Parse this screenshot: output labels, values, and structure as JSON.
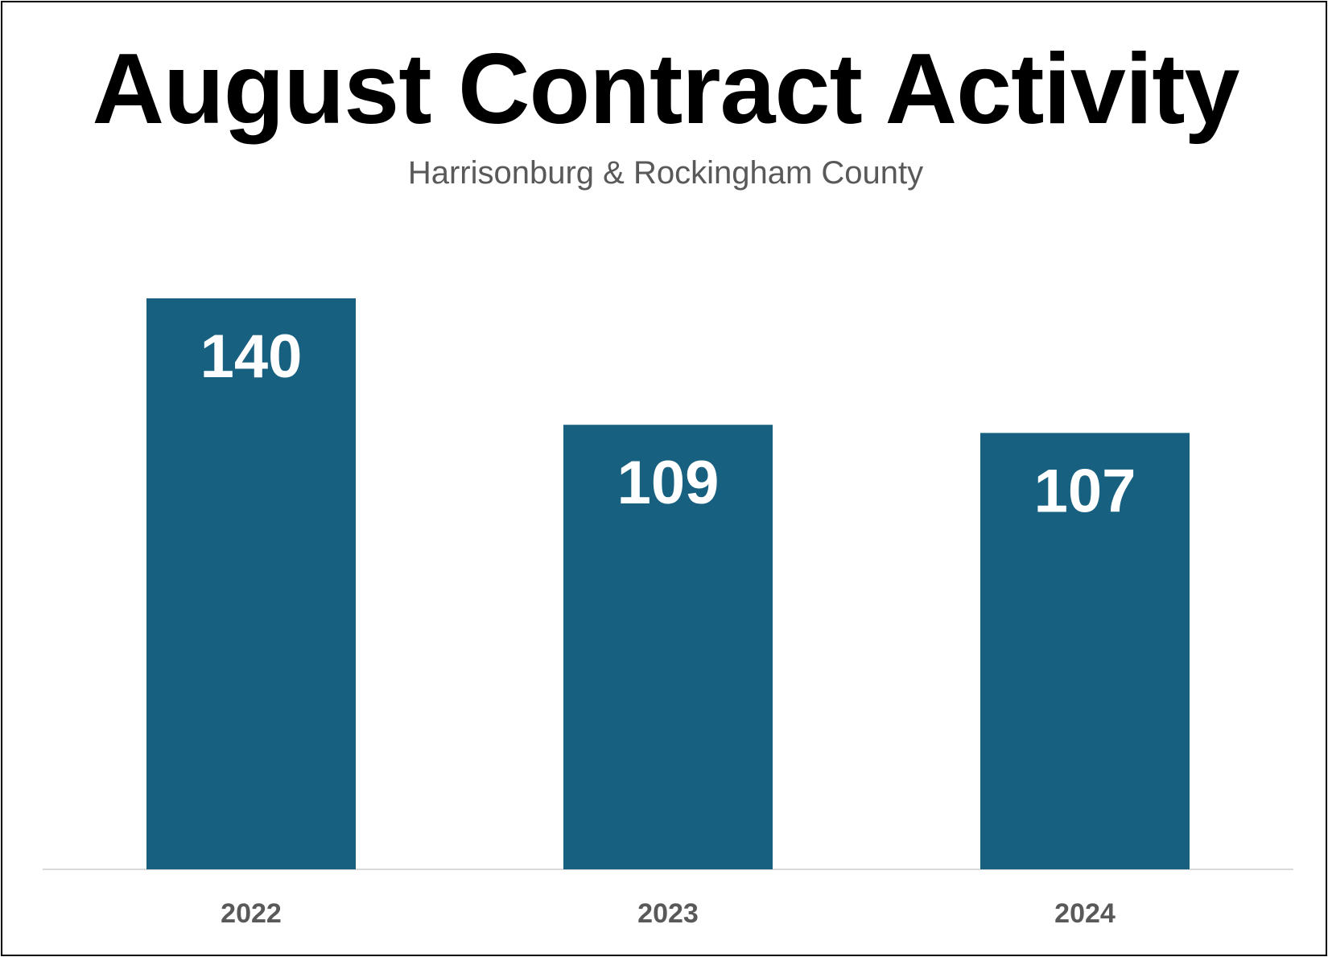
{
  "chart_data": {
    "type": "bar",
    "title": "August Contract Activity",
    "subtitle": "Harrisonburg & Rockingham County",
    "categories": [
      "2022",
      "2023",
      "2024"
    ],
    "values": [
      140,
      109,
      107
    ],
    "data_labels": [
      "140",
      "109",
      "107"
    ],
    "xlabel": "",
    "ylabel": "",
    "ylim": [
      0,
      140
    ],
    "grid": false,
    "legend": "none",
    "bar_color": "#17607F",
    "value_label_color": "#FFFFFF",
    "tick_label_color": "#595959"
  }
}
